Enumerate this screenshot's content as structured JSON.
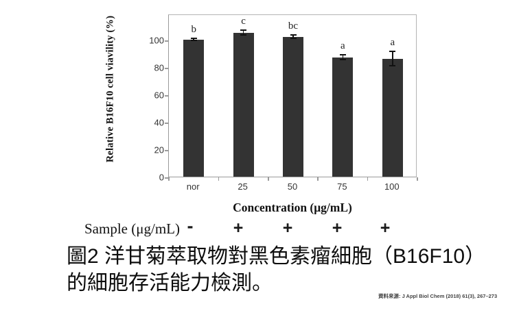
{
  "figure": {
    "y_axis_label": "Relative B16F10 cell viavility (%)",
    "x_axis_label": "Concentration (μg/mL)",
    "sample_row": {
      "label": "Sample (μg/mL)",
      "symbols": [
        "-",
        "+",
        "+",
        "+",
        "+"
      ]
    },
    "caption_line1": "圖2 洋甘菊萃取物對黑色素瘤細胞（B16F10）",
    "caption_line2": "的細胞存活能力檢測。",
    "source": "資料來源: J Appl Biol Chem (2018) 61(3), 267–273"
  },
  "chart_data": {
    "type": "bar",
    "title": "",
    "categories": [
      "nor",
      "25",
      "50",
      "75",
      "100"
    ],
    "values": [
      100,
      105,
      102,
      87,
      86
    ],
    "error_bars": [
      1,
      2,
      1.5,
      2,
      5.5
    ],
    "significance_letters": [
      "b",
      "c",
      "bc",
      "a",
      "a"
    ],
    "xlabel": "Concentration (μg/mL)",
    "ylabel": "Relative B16F10 cell viavility (%)",
    "ylim": [
      0,
      119
    ],
    "yticks": [
      0,
      20,
      40,
      60,
      80,
      100
    ],
    "bar_color": "#333333",
    "grid": false,
    "legend": "none"
  }
}
